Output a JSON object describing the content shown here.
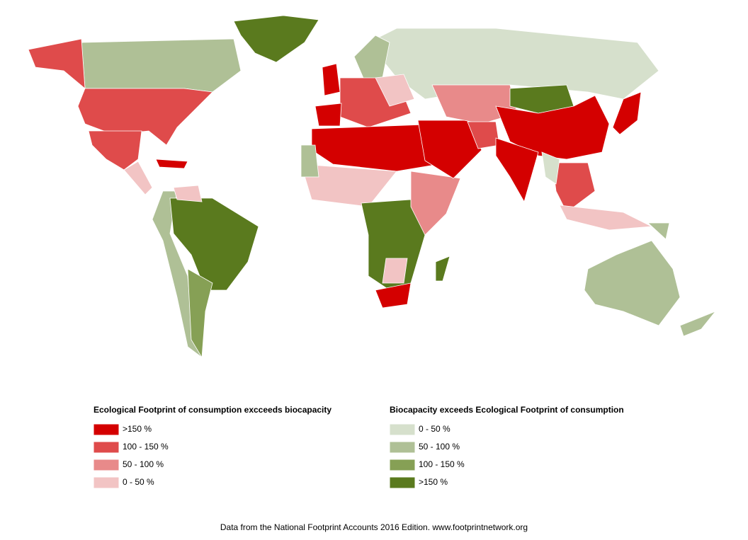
{
  "legend": [
    {
      "title": "Ecological Footprint of consumption excceeds biocapacity",
      "items": [
        {
          "label": ">150 %",
          "color": "#d40000"
        },
        {
          "label": "100 - 150 %",
          "color": "#df4b4b"
        },
        {
          "label": "50 - 100 %",
          "color": "#e88a8a"
        },
        {
          "label": "0 - 50 %",
          "color": "#f2c4c4"
        }
      ]
    },
    {
      "title": "Biocapacity exceeds Ecological Footprint of consumption",
      "items": [
        {
          "label": "0 - 50 %",
          "color": "#d6e0cc"
        },
        {
          "label": "50 - 100 %",
          "color": "#afc096"
        },
        {
          "label": "100 - 150 %",
          "color": "#86a055"
        },
        {
          "label": ">150 %",
          "color": "#5a7a1e"
        }
      ]
    }
  ],
  "source": "Data from the National Footprint Accounts 2016 Edition. www.footprintnetwork.org"
}
